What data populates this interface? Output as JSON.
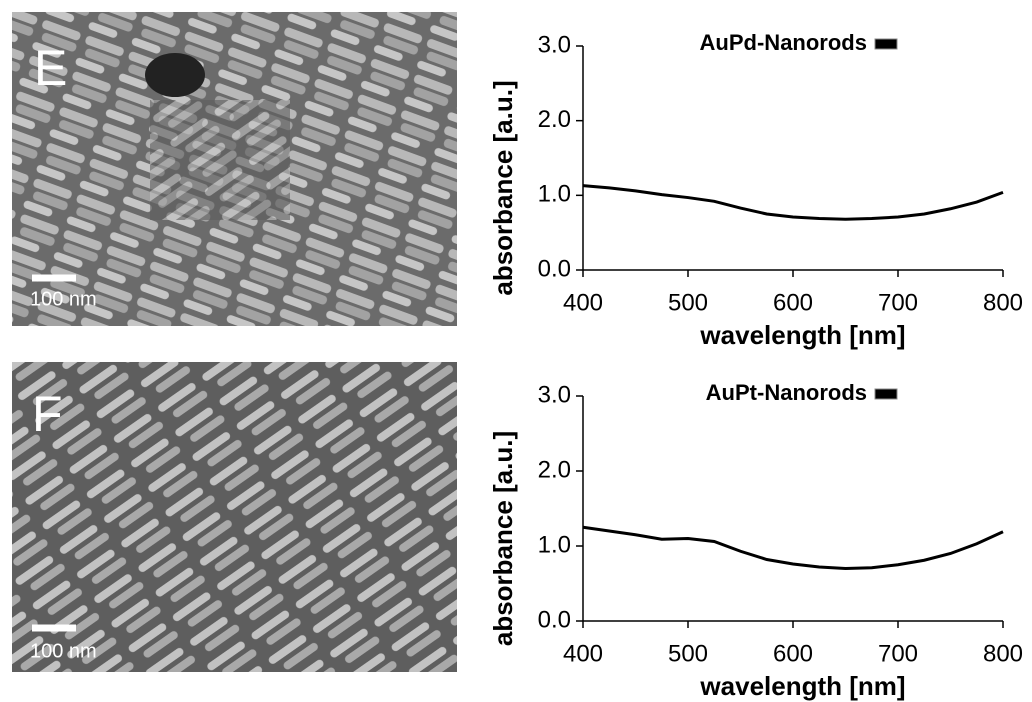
{
  "panels": [
    {
      "label": "E",
      "scale_bar": "100 nm"
    },
    {
      "label": "F",
      "scale_bar": "100 nm"
    }
  ],
  "chart_data": [
    {
      "type": "line",
      "xlabel": "wavelength [nm]",
      "ylabel": "absorbance [a.u.]",
      "x": [
        400,
        425,
        450,
        475,
        500,
        525,
        550,
        575,
        600,
        625,
        650,
        675,
        700,
        725,
        750,
        775,
        800
      ],
      "series": [
        {
          "name": "AuPd-Nanorods",
          "color": "#000000",
          "values": [
            1.13,
            1.1,
            1.06,
            1.01,
            0.97,
            0.92,
            0.83,
            0.75,
            0.71,
            0.69,
            0.68,
            0.69,
            0.71,
            0.75,
            0.82,
            0.91,
            1.04
          ]
        }
      ],
      "xlim": [
        400,
        800
      ],
      "xticks": [
        400,
        500,
        600,
        700,
        800
      ],
      "ylim": [
        0,
        3
      ],
      "yticks": [
        {
          "value": 0,
          "label": "0.0"
        },
        {
          "value": 1,
          "label": "1.0"
        },
        {
          "value": 2,
          "label": "2.0"
        },
        {
          "value": 3,
          "label": "3.0"
        }
      ],
      "grid": false,
      "legend": "top-right"
    },
    {
      "type": "line",
      "xlabel": "wavelength [nm]",
      "ylabel": "absorbance [a.u.]",
      "x": [
        400,
        425,
        450,
        475,
        500,
        525,
        550,
        575,
        600,
        625,
        650,
        675,
        700,
        725,
        750,
        775,
        800
      ],
      "series": [
        {
          "name": "AuPt-Nanorods",
          "color": "#000000",
          "values": [
            1.25,
            1.2,
            1.15,
            1.09,
            1.1,
            1.06,
            0.93,
            0.82,
            0.76,
            0.72,
            0.7,
            0.71,
            0.75,
            0.81,
            0.9,
            1.03,
            1.19
          ]
        }
      ],
      "xlim": [
        400,
        800
      ],
      "xticks": [
        400,
        500,
        600,
        700,
        800
      ],
      "ylim": [
        0,
        3
      ],
      "yticks": [
        {
          "value": 0,
          "label": "0.0"
        },
        {
          "value": 1,
          "label": "1.0"
        },
        {
          "value": 2,
          "label": "2.0"
        },
        {
          "value": 3,
          "label": "3.0"
        }
      ],
      "grid": false,
      "legend": "top-right"
    }
  ]
}
